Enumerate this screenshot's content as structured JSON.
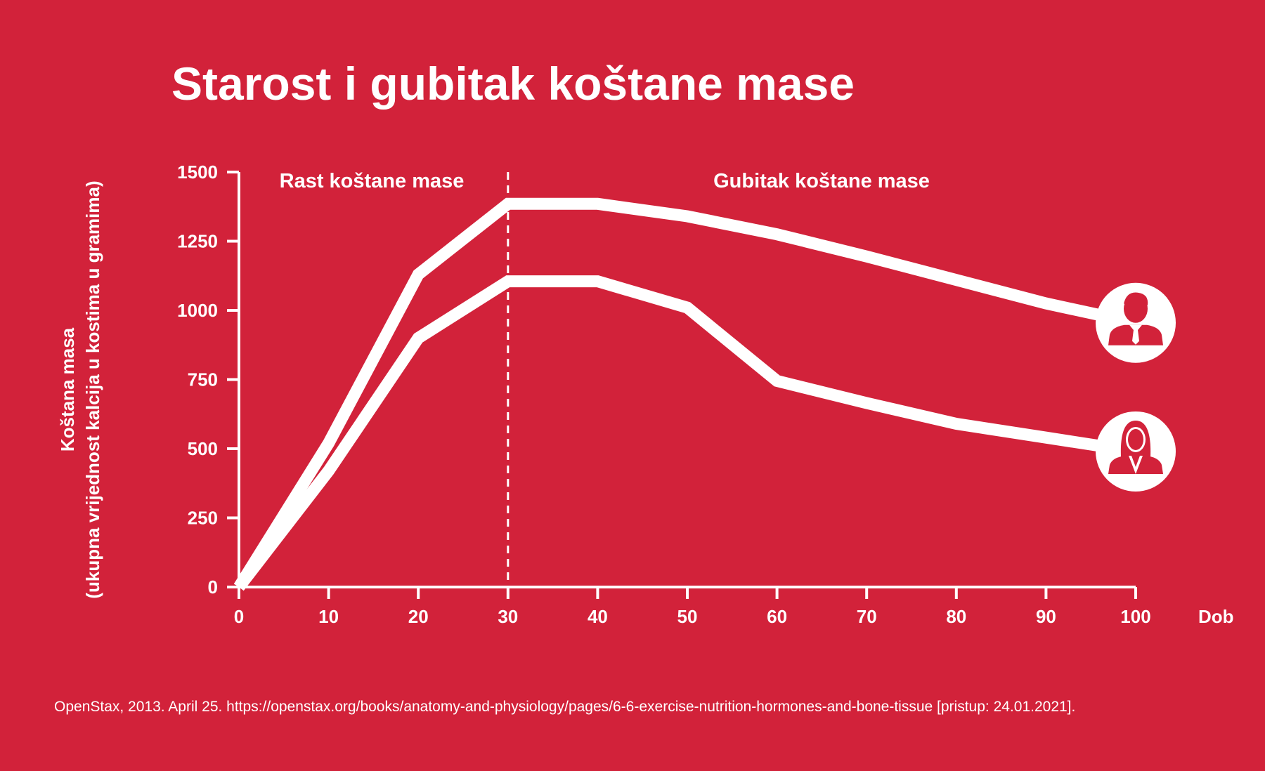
{
  "chart_data": {
    "type": "line",
    "title": "Starost i gubitak koštane mase",
    "xlabel": "Dob",
    "ylabel": [
      "Koštana masa",
      "(ukupna vrijednost kalcija u kostima u gramima)"
    ],
    "x": [
      0,
      10,
      20,
      30,
      40,
      50,
      60,
      70,
      80,
      90,
      100
    ],
    "xticks": [
      "0",
      "10",
      "20",
      "30",
      "40",
      "50",
      "60",
      "70",
      "80",
      "90",
      "100"
    ],
    "yticks": [
      "0",
      "250",
      "500",
      "750",
      "1000",
      "1250",
      "1500"
    ],
    "xlim": [
      0,
      100
    ],
    "ylim": [
      0,
      1500
    ],
    "grid": false,
    "series": [
      {
        "icon": "man-icon",
        "values": [
          0,
          520,
          1130,
          1385,
          1385,
          1340,
          1275,
          1195,
          1110,
          1025,
          955
        ]
      },
      {
        "icon": "woman-icon",
        "values": [
          0,
          420,
          900,
          1105,
          1105,
          1010,
          745,
          665,
          590,
          540,
          490
        ]
      }
    ],
    "divider_x": 30,
    "regions": [
      "Rast koštane mase",
      "Gubitak koštane mase"
    ],
    "line_color": "#ffffff",
    "background": "#d2223a"
  },
  "source": "OpenStax, 2013. April 25. https://openstax.org/books/anatomy-and-physiology/pages/6-6-exercise-nutrition-hormones-and-bone-tissue [pristup: 24.01.2021]."
}
